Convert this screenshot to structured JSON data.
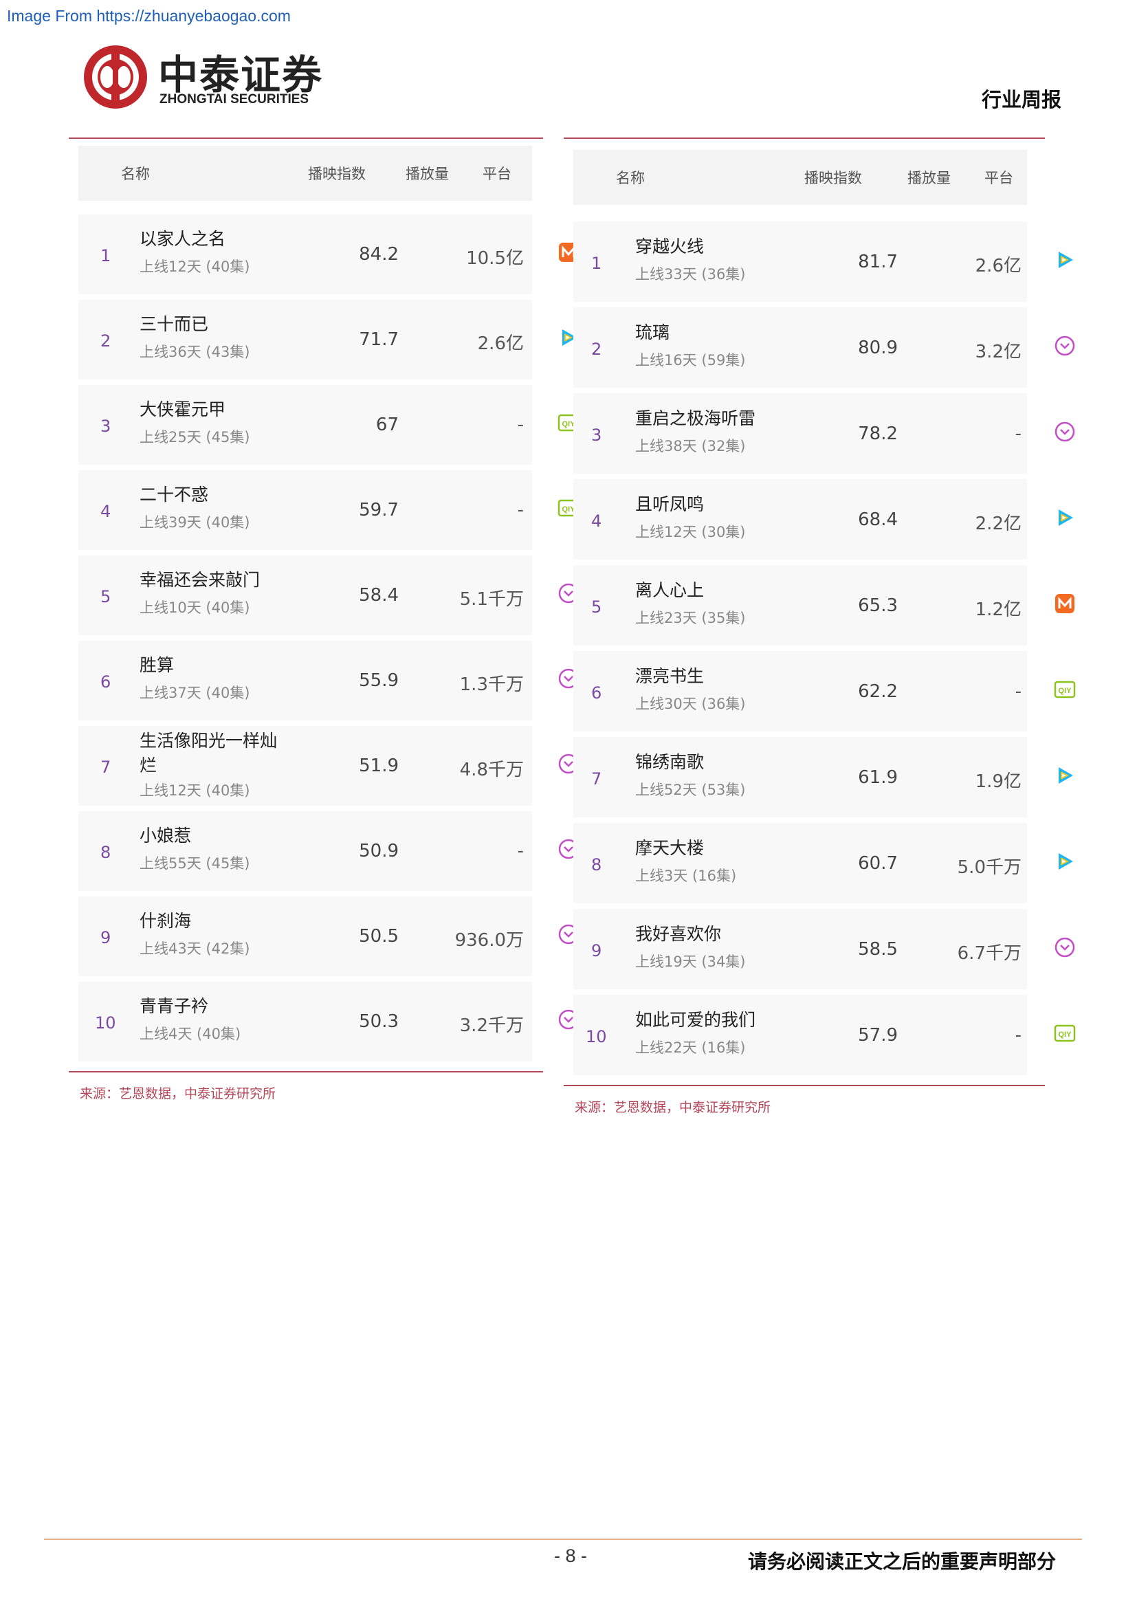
{
  "watermark": "Image From https://zhuanyebaogao.com",
  "brand": {
    "name_cn": "中泰证券",
    "name_en": "ZHONGTAI SECURITIES"
  },
  "header": {
    "category": "行业周报"
  },
  "colors": {
    "accent": "#b3475a",
    "rank": "#7a4aa0",
    "mgtv": "#f26a21",
    "tencent": "#1fb5f0",
    "iqiyi": "#8ec21f",
    "youku": "#c44dc8"
  },
  "tables": [
    {
      "columns": {
        "name": "名称",
        "index": "播映指数",
        "volume": "播放量",
        "platform": "平台"
      },
      "rows": [
        {
          "rank": "1",
          "title": "以家人之名",
          "sub": "上线12天 (40集)",
          "index": "84.2",
          "volume": "10.5亿",
          "platform": "mgtv"
        },
        {
          "rank": "2",
          "title": "三十而已",
          "sub": "上线36天 (43集)",
          "index": "71.7",
          "volume": "2.6亿",
          "platform": "tencent"
        },
        {
          "rank": "3",
          "title": "大侠霍元甲",
          "sub": "上线25天 (45集)",
          "index": "67",
          "volume": "-",
          "platform": "iqiyi"
        },
        {
          "rank": "4",
          "title": "二十不惑",
          "sub": "上线39天 (40集)",
          "index": "59.7",
          "volume": "-",
          "platform": "iqiyi"
        },
        {
          "rank": "5",
          "title": "幸福还会来敲门",
          "sub": "上线10天 (40集)",
          "index": "58.4",
          "volume": "5.1千万",
          "platform": "youku"
        },
        {
          "rank": "6",
          "title": "胜算",
          "sub": "上线37天 (40集)",
          "index": "55.9",
          "volume": "1.3千万",
          "platform": "youku"
        },
        {
          "rank": "7",
          "title": "生活像阳光一样灿烂",
          "sub": "上线12天 (40集)",
          "index": "51.9",
          "volume": "4.8千万",
          "platform": "youku"
        },
        {
          "rank": "8",
          "title": "小娘惹",
          "sub": "上线55天 (45集)",
          "index": "50.9",
          "volume": "-",
          "platform": "youku"
        },
        {
          "rank": "9",
          "title": "什刹海",
          "sub": "上线43天 (42集)",
          "index": "50.5",
          "volume": "936.0万",
          "platform": "youku"
        },
        {
          "rank": "10",
          "title": "青青子衿",
          "sub": "上线4天 (40集)",
          "index": "50.3",
          "volume": "3.2千万",
          "platform": "youku"
        }
      ],
      "source": "来源：艺恩数据，中泰证券研究所"
    },
    {
      "columns": {
        "name": "名称",
        "index": "播映指数",
        "volume": "播放量",
        "platform": "平台"
      },
      "rows": [
        {
          "rank": "1",
          "title": "穿越火线",
          "sub": "上线33天 (36集)",
          "index": "81.7",
          "volume": "2.6亿",
          "platform": "tencent"
        },
        {
          "rank": "2",
          "title": "琉璃",
          "sub": "上线16天 (59集)",
          "index": "80.9",
          "volume": "3.2亿",
          "platform": "youku"
        },
        {
          "rank": "3",
          "title": "重启之极海听雷",
          "sub": "上线38天 (32集)",
          "index": "78.2",
          "volume": "-",
          "platform": "youku"
        },
        {
          "rank": "4",
          "title": "且听凤鸣",
          "sub": "上线12天 (30集)",
          "index": "68.4",
          "volume": "2.2亿",
          "platform": "tencent"
        },
        {
          "rank": "5",
          "title": "离人心上",
          "sub": "上线23天 (35集)",
          "index": "65.3",
          "volume": "1.2亿",
          "platform": "mgtv"
        },
        {
          "rank": "6",
          "title": "漂亮书生",
          "sub": "上线30天 (36集)",
          "index": "62.2",
          "volume": "-",
          "platform": "iqiyi"
        },
        {
          "rank": "7",
          "title": "锦绣南歌",
          "sub": "上线52天 (53集)",
          "index": "61.9",
          "volume": "1.9亿",
          "platform": "tencent"
        },
        {
          "rank": "8",
          "title": "摩天大楼",
          "sub": "上线3天 (16集)",
          "index": "60.7",
          "volume": "5.0千万",
          "platform": "tencent"
        },
        {
          "rank": "9",
          "title": "我好喜欢你",
          "sub": "上线19天 (34集)",
          "index": "58.5",
          "volume": "6.7千万",
          "platform": "youku"
        },
        {
          "rank": "10",
          "title": "如此可爱的我们",
          "sub": "上线22天 (16集)",
          "index": "57.9",
          "volume": "-",
          "platform": "iqiyi"
        }
      ],
      "source": "来源：艺恩数据，中泰证券研究所"
    }
  ],
  "footer": {
    "page": "- 8 -",
    "note": "请务必阅读正文之后的重要声明部分"
  }
}
